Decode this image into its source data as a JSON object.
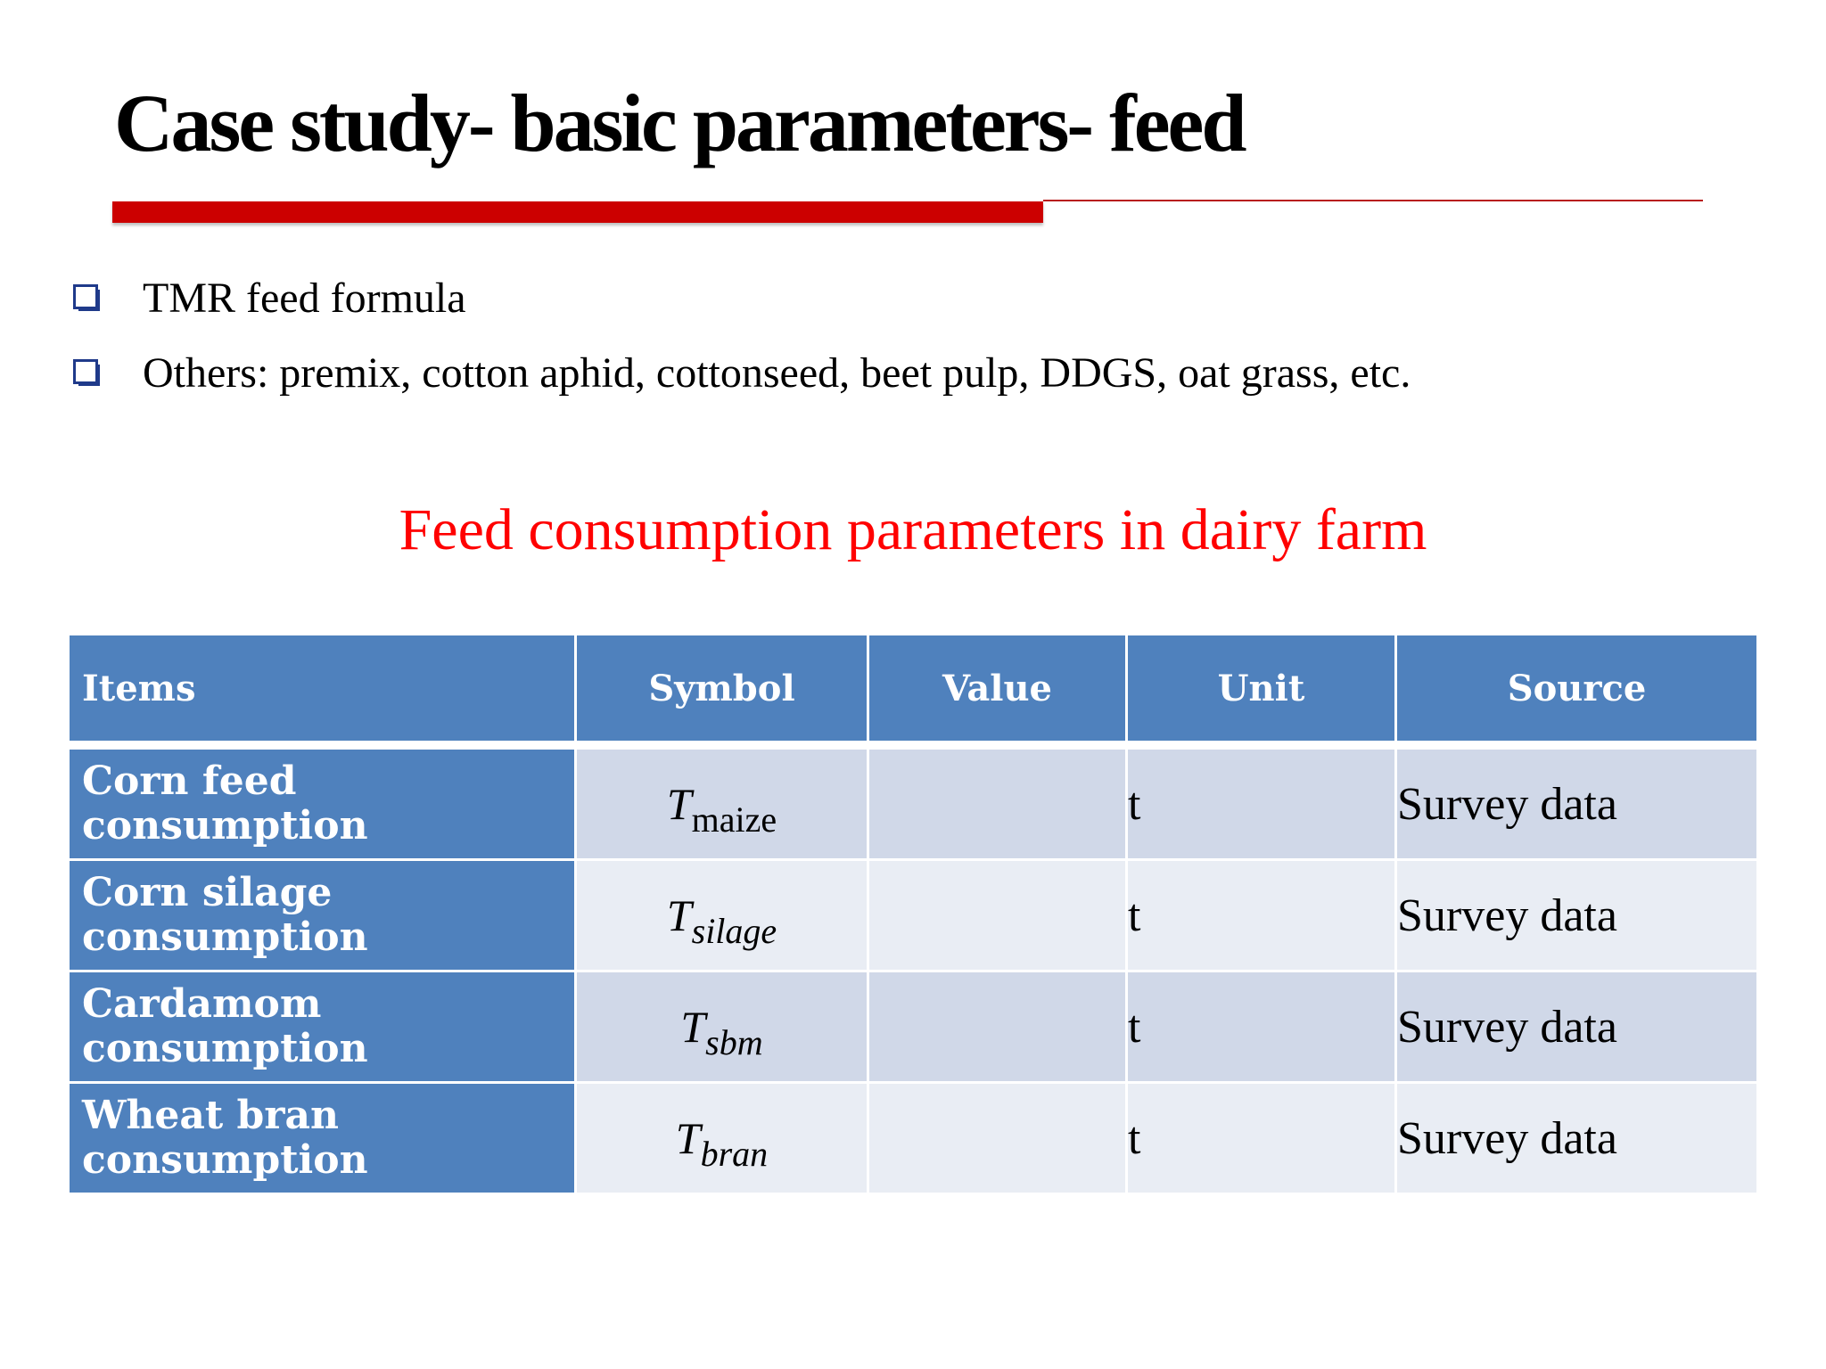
{
  "slide": {
    "title": "Case study- basic parameters- feed",
    "bullets": [
      "TMR feed formula",
      "Others: premix, cotton aphid, cottonseed, beet pulp, DDGS, oat grass, etc."
    ],
    "table_title": "Feed consumption parameters in dairy farm",
    "colors": {
      "title_bar": "#cc0000",
      "table_title": "#ff0000",
      "header_fill": "#4f81bd",
      "row_odd": "#d0d8e8",
      "row_even": "#e9edf4",
      "bullet_box": "#1f3a8a"
    }
  },
  "table": {
    "headers": {
      "items": "Items",
      "symbol": "Symbol",
      "value": "Value",
      "unit": "Unit",
      "source": "Source"
    },
    "rows": [
      {
        "item": "Corn feed consumption",
        "symbol_main": "T",
        "symbol_sub": "maize",
        "value": "",
        "unit": "t",
        "source": "Survey data"
      },
      {
        "item": "Corn silage consumption",
        "symbol_main": "T",
        "symbol_sub": "silage",
        "value": "",
        "unit": "t",
        "source": "Survey data"
      },
      {
        "item": "Cardamom consumption",
        "symbol_main": "T",
        "symbol_sub": "sbm",
        "value": "",
        "unit": "t",
        "source": "Survey data"
      },
      {
        "item": "Wheat bran consumption",
        "symbol_main": "T",
        "symbol_sub": "bran",
        "value": "",
        "unit": "t",
        "source": "Survey data"
      }
    ]
  }
}
